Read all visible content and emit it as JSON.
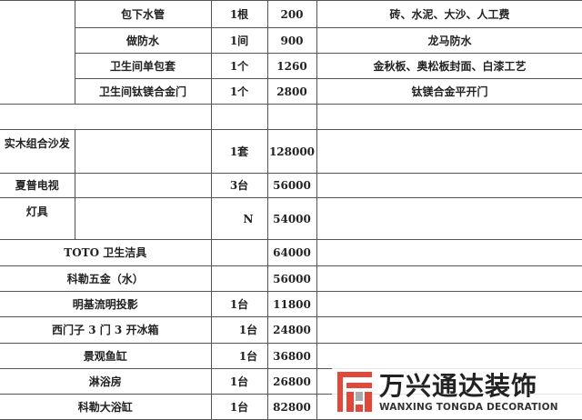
{
  "rows": [
    {
      "item": "包下水管",
      "qty": "1根",
      "price": "200",
      "note": "砖、水泥、大沙、人工费"
    },
    {
      "item": "做防水",
      "qty": "1间",
      "price": "900",
      "note": "龙马防水"
    },
    {
      "item": "卫生间单包套",
      "qty": "1个",
      "price": "1260",
      "note": "金秋板、奥松板封面、白漆工艺"
    },
    {
      "item": "卫生间钛镁合金门",
      "qty": "1个",
      "price": "2800",
      "note": "钛镁合金平开门"
    },
    {
      "category": "实木组合沙发",
      "qty": "1套",
      "price": "128000"
    },
    {
      "category": "夏普电视",
      "qty": "3台",
      "price": "56000"
    },
    {
      "category": "灯具",
      "qty": "N",
      "price": "54000"
    },
    {
      "item": "TOTO 卫生洁具",
      "qty": "",
      "price": "64000"
    },
    {
      "item": "科勒五金（水）",
      "qty": "",
      "price": "56000"
    },
    {
      "item": "明基流明投影",
      "qty": "1台",
      "price": "11800"
    },
    {
      "item": "西门子 3 门 3 开冰箱",
      "qty": "1台",
      "price": "24800"
    },
    {
      "item": "景观鱼缸",
      "qty": "1台",
      "price": "36800"
    },
    {
      "item": "淋浴房",
      "qty": "1台",
      "price": "26800"
    },
    {
      "item": "科勒大浴缸",
      "qty": "1台",
      "price": "82800"
    }
  ],
  "watermark": {
    "name_cn": "万兴通达装饰",
    "name_en": "WANXING TONGDA DECORATION",
    "brand_color": "#e2483a"
  }
}
